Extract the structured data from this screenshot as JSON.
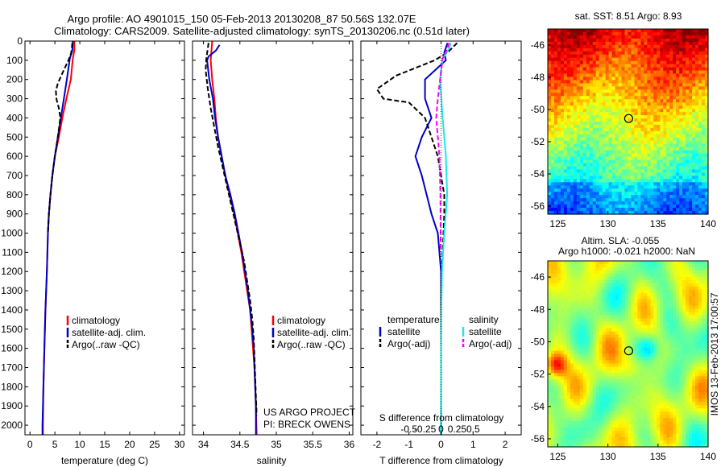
{
  "header": {
    "title_line1": "Argo profile: AO 4901015_150 05-Feb-2013 20130208_87 50.56S 132.07E",
    "title_line2": "Climatology: CARS2009. Satellite-adjusted climatology: synTS_20130206.nc (0.51d later)"
  },
  "colors": {
    "climatology": "#ff0000",
    "satellite": "#0000cc",
    "argo": "#000000",
    "satellite_salinity": "#22e5e5",
    "argo_salinity": "#ff00ff"
  },
  "chart_data": [
    {
      "type": "line",
      "panel": "temperature",
      "xlabel": "temperature (deg C)",
      "ylabel": "",
      "xlim": [
        -1,
        31
      ],
      "ylim": [
        2050,
        0
      ],
      "xticks": [
        0,
        5,
        10,
        15,
        20,
        25,
        30
      ],
      "yticks": [
        0,
        100,
        200,
        300,
        400,
        500,
        600,
        700,
        800,
        900,
        1000,
        1100,
        1200,
        1300,
        1400,
        1500,
        1600,
        1700,
        1800,
        1900,
        2000
      ],
      "legend": [
        "climatology",
        "satellite-adj. clim.",
        "Argo(..raw -QC)"
      ],
      "legend_position": "lower-center",
      "grid": false,
      "series": [
        {
          "name": "climatology",
          "style": "solid",
          "color": "#ff0000",
          "points": [
            [
              8.9,
              0
            ],
            [
              8.9,
              50
            ],
            [
              8.6,
              90
            ],
            [
              8.2,
              200
            ],
            [
              7.3,
              300
            ],
            [
              6.5,
              400
            ],
            [
              5.8,
              500
            ],
            [
              5.0,
              600
            ],
            [
              4.5,
              700
            ],
            [
              4.1,
              800
            ],
            [
              3.8,
              900
            ],
            [
              3.6,
              1000
            ],
            [
              3.4,
              1200
            ],
            [
              3.1,
              1400
            ],
            [
              2.9,
              1600
            ],
            [
              2.7,
              1800
            ],
            [
              2.6,
              2000
            ],
            [
              2.6,
              2050
            ]
          ]
        },
        {
          "name": "satellite-adj. clim.",
          "style": "solid",
          "color": "#0000cc",
          "points": [
            [
              8.6,
              0
            ],
            [
              8.5,
              50
            ],
            [
              8.0,
              90
            ],
            [
              7.4,
              200
            ],
            [
              6.8,
              300
            ],
            [
              6.2,
              400
            ],
            [
              5.6,
              500
            ],
            [
              5.0,
              600
            ],
            [
              4.5,
              700
            ],
            [
              4.1,
              800
            ],
            [
              3.8,
              900
            ],
            [
              3.6,
              1000
            ],
            [
              3.4,
              1200
            ],
            [
              3.1,
              1400
            ],
            [
              2.9,
              1600
            ],
            [
              2.7,
              1800
            ],
            [
              2.5,
              2000
            ],
            [
              2.5,
              2050
            ]
          ]
        },
        {
          "name": "Argo(..raw -QC)",
          "style": "dashed",
          "color": "#000000",
          "points": [
            [
              8.5,
              10
            ],
            [
              8.3,
              60
            ],
            [
              7.8,
              95
            ],
            [
              6.8,
              150
            ],
            [
              5.6,
              220
            ],
            [
              5.2,
              260
            ],
            [
              5.3,
              300
            ],
            [
              5.8,
              350
            ],
            [
              6.1,
              400
            ],
            [
              5.6,
              500
            ],
            [
              5.0,
              600
            ],
            [
              4.5,
              700
            ],
            [
              4.1,
              800
            ],
            [
              3.8,
              900
            ],
            [
              3.6,
              1000
            ]
          ]
        }
      ]
    },
    {
      "type": "line",
      "panel": "salinity",
      "xlabel": "salinity",
      "ylabel": "",
      "xlim": [
        33.85,
        36.05
      ],
      "ylim": [
        2050,
        0
      ],
      "xticks": [
        34,
        34.5,
        35,
        35.5,
        36
      ],
      "legend": [
        "climatology",
        "satellite-adj. clim.",
        "Argo(..raw -QC)"
      ],
      "legend_position": "lower-right",
      "annotations": [
        "US ARGO PROJECT",
        "PI: BRECK OWENS"
      ],
      "grid": false,
      "series": [
        {
          "name": "climatology",
          "style": "solid",
          "color": "#ff0000",
          "points": [
            [
              34.12,
              0
            ],
            [
              34.1,
              100
            ],
            [
              34.12,
              200
            ],
            [
              34.15,
              300
            ],
            [
              34.17,
              400
            ],
            [
              34.2,
              500
            ],
            [
              34.25,
              600
            ],
            [
              34.3,
              700
            ],
            [
              34.36,
              800
            ],
            [
              34.42,
              900
            ],
            [
              34.47,
              1000
            ],
            [
              34.52,
              1100
            ],
            [
              34.56,
              1200
            ],
            [
              34.6,
              1300
            ],
            [
              34.64,
              1400
            ],
            [
              34.66,
              1500
            ],
            [
              34.68,
              1600
            ],
            [
              34.7,
              1700
            ],
            [
              34.71,
              1800
            ],
            [
              34.72,
              1900
            ],
            [
              34.73,
              2050
            ]
          ]
        },
        {
          "name": "satellite-adj. clim.",
          "style": "solid",
          "color": "#0000cc",
          "points": [
            [
              34.22,
              20
            ],
            [
              34.17,
              50
            ],
            [
              34.07,
              80
            ],
            [
              34.05,
              100
            ],
            [
              34.08,
              200
            ],
            [
              34.13,
              300
            ],
            [
              34.16,
              400
            ],
            [
              34.2,
              500
            ],
            [
              34.25,
              600
            ],
            [
              34.3,
              700
            ],
            [
              34.37,
              800
            ],
            [
              34.43,
              900
            ],
            [
              34.48,
              1000
            ],
            [
              34.53,
              1100
            ],
            [
              34.57,
              1200
            ],
            [
              34.61,
              1300
            ],
            [
              34.64,
              1400
            ],
            [
              34.67,
              1500
            ],
            [
              34.69,
              1600
            ],
            [
              34.7,
              1700
            ],
            [
              34.71,
              1800
            ],
            [
              34.72,
              1900
            ],
            [
              34.72,
              2050
            ]
          ]
        },
        {
          "name": "Argo(..raw -QC)",
          "style": "dashed",
          "color": "#000000",
          "points": [
            [
              34.07,
              10
            ],
            [
              34.04,
              90
            ],
            [
              34.03,
              150
            ],
            [
              34.06,
              250
            ],
            [
              34.1,
              350
            ],
            [
              34.15,
              450
            ],
            [
              34.2,
              550
            ],
            [
              34.26,
              650
            ],
            [
              34.32,
              750
            ],
            [
              34.38,
              850
            ],
            [
              34.44,
              950
            ],
            [
              34.5,
              1050
            ],
            [
              34.56,
              1150
            ],
            [
              34.6,
              1250
            ],
            [
              34.64,
              1350
            ],
            [
              34.67,
              1450
            ],
            [
              34.69,
              1550
            ],
            [
              34.7,
              1650
            ],
            [
              34.71,
              1750
            ],
            [
              34.72,
              1850
            ],
            [
              34.73,
              1950
            ]
          ]
        }
      ]
    },
    {
      "type": "line",
      "panel": "difference",
      "xlabel": "T difference from climatology",
      "xlabel_top": "S difference from climatology",
      "xlim": [
        -2.5,
        2.5
      ],
      "ylim": [
        2050,
        0
      ],
      "xticks": [
        -2,
        -1,
        0,
        1,
        2
      ],
      "xticks_salinity": [
        "-0.5",
        "-0.25",
        "0",
        "0.25",
        "0.5"
      ],
      "legend_groups": [
        {
          "title": "temperature",
          "entries": [
            "satellite",
            "Argo(-adj)"
          ]
        },
        {
          "title": "salinity",
          "entries": [
            "satellite",
            "Argo(-adj)"
          ]
        }
      ],
      "legend_position": "lower-center",
      "grid": false,
      "series": [
        {
          "name": "temperature satellite",
          "style": "solid",
          "color": "#0000cc",
          "points": [
            [
              0.2,
              10
            ],
            [
              0.1,
              60
            ],
            [
              0.15,
              100
            ],
            [
              -0.5,
              200
            ],
            [
              -0.5,
              300
            ],
            [
              -0.3,
              400
            ],
            [
              -0.6,
              500
            ],
            [
              -0.8,
              600
            ],
            [
              -0.6,
              700
            ],
            [
              -0.45,
              800
            ],
            [
              -0.3,
              900
            ],
            [
              -0.1,
              1000
            ],
            [
              0,
              1200
            ],
            [
              0,
              1500
            ],
            [
              0,
              2050
            ]
          ]
        },
        {
          "name": "temperature Argo(-adj)",
          "style": "dashed",
          "color": "#000000",
          "points": [
            [
              0.5,
              10
            ],
            [
              0.2,
              60
            ],
            [
              -0.2,
              100
            ],
            [
              -1.4,
              180
            ],
            [
              -2.0,
              250
            ],
            [
              -1.8,
              300
            ],
            [
              -1.0,
              320
            ],
            [
              -0.5,
              400
            ],
            [
              -0.3,
              500
            ],
            [
              -0.1,
              600
            ],
            [
              0,
              700
            ],
            [
              0.1,
              800
            ],
            [
              0.1,
              900
            ],
            [
              0.05,
              1100
            ],
            [
              0,
              1300
            ],
            [
              0,
              1600
            ],
            [
              0,
              1800
            ]
          ]
        },
        {
          "name": "salinity satellite",
          "style": "solid",
          "color": "#22e5e5",
          "points": [
            [
              0.3,
              10
            ],
            [
              0.25,
              40
            ],
            [
              0.05,
              90
            ],
            [
              -0.03,
              200
            ],
            [
              0.05,
              400
            ],
            [
              0.15,
              600
            ],
            [
              0.19,
              800
            ],
            [
              0.1,
              1000
            ],
            [
              0.03,
              1200
            ],
            [
              0.01,
              1400
            ],
            [
              0,
              1600
            ],
            [
              0,
              1800
            ],
            [
              -0.01,
              2050
            ]
          ]
        },
        {
          "name": "salinity Argo(-adj)",
          "style": "dashed",
          "color": "#ff00ff",
          "points": [
            [
              0.25,
              10
            ],
            [
              0.2,
              40
            ],
            [
              0.05,
              90
            ],
            [
              -0.1,
              300
            ],
            [
              -0.15,
              400
            ],
            [
              -0.05,
              600
            ],
            [
              -0.02,
              800
            ],
            [
              -0.01,
              1100
            ]
          ]
        }
      ]
    },
    {
      "type": "heatmap",
      "panel": "sst-map",
      "title": "sat. SST: 8.51  Argo: 8.93",
      "xlim": [
        124,
        140
      ],
      "ylim": [
        -56.5,
        -45
      ],
      "xticks": [
        125,
        130,
        135,
        140
      ],
      "yticks": [
        -46,
        -48,
        -50,
        -52,
        -54,
        -56
      ],
      "marker": {
        "lon": 132.07,
        "lat": -50.56
      }
    },
    {
      "type": "heatmap",
      "panel": "sla-map",
      "title_line1": "Altim. SLA: -0.055",
      "title_line2": "Argo h1000: -0.021 h2000: NaN",
      "xlim": [
        124,
        140
      ],
      "ylim": [
        -56.5,
        -45
      ],
      "xticks": [
        125,
        130,
        135,
        140
      ],
      "yticks": [
        -46,
        -48,
        -50,
        -52,
        -54,
        -56
      ],
      "marker": {
        "lon": 132.07,
        "lat": -50.56
      },
      "side_label": "IMOS 13-Feb-2013 17:00:57"
    }
  ]
}
